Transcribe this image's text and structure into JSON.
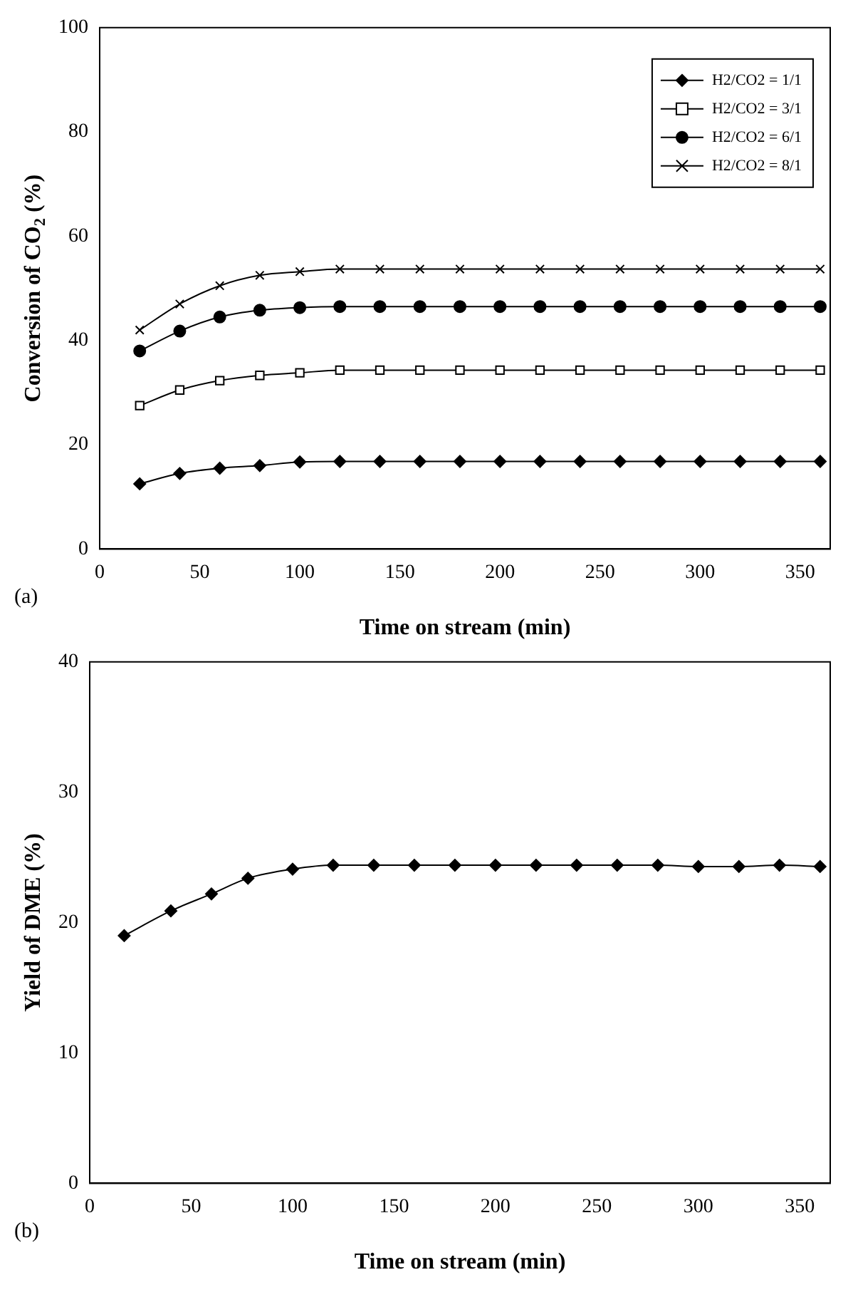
{
  "chart_data": [
    {
      "type": "line",
      "xlabel": "Time on stream (min)",
      "ylabel": "Conversion of CO$_{2}$ (%)",
      "annotations": [
        "(a)"
      ],
      "x": [
        20,
        40,
        60,
        80,
        100,
        120,
        140,
        160,
        180,
        200,
        220,
        240,
        260,
        280,
        300,
        320,
        340,
        360
      ],
      "xlim": [
        0,
        365
      ],
      "xticks": [
        0,
        50,
        100,
        150,
        200,
        250,
        300,
        350
      ],
      "ylim": [
        0,
        100
      ],
      "yticks": [
        0,
        20,
        40,
        60,
        80,
        100
      ],
      "grid": false,
      "legend": "top right",
      "series": [
        {
          "name": "H2/CO2 = 1/1",
          "color": "#000000",
          "marker": "diamond",
          "values": [
            12.5,
            14.5,
            15.5,
            16,
            16.7,
            16.8,
            16.8,
            16.8,
            16.8,
            16.8,
            16.8,
            16.8,
            16.8,
            16.8,
            16.8,
            16.8,
            16.8,
            16.8
          ]
        },
        {
          "name": "H2/CO2 = 3/1",
          "color": "#000000",
          "marker": "square",
          "values": [
            27.5,
            30.5,
            32.3,
            33.3,
            33.8,
            34.3,
            34.3,
            34.3,
            34.3,
            34.3,
            34.3,
            34.3,
            34.3,
            34.3,
            34.3,
            34.3,
            34.3,
            34.3
          ]
        },
        {
          "name": "H2/CO2 = 6/1",
          "color": "#000000",
          "marker": "circle",
          "values": [
            38,
            41.8,
            44.5,
            45.8,
            46.3,
            46.5,
            46.5,
            46.5,
            46.5,
            46.5,
            46.5,
            46.5,
            46.5,
            46.5,
            46.5,
            46.5,
            46.5,
            46.5
          ]
        },
        {
          "name": "H2/CO2 = 8/1",
          "color": "#000000",
          "marker": "cross",
          "values": [
            42,
            47,
            50.5,
            52.5,
            53.2,
            53.7,
            53.7,
            53.7,
            53.7,
            53.7,
            53.7,
            53.7,
            53.7,
            53.7,
            53.7,
            53.7,
            53.7,
            53.7
          ]
        }
      ]
    },
    {
      "type": "line",
      "xlabel": "Time on stream (min)",
      "ylabel": "Yield of DME (%)",
      "annotations": [
        "(b)"
      ],
      "x": [
        17,
        40,
        60,
        78,
        100,
        120,
        140,
        160,
        180,
        200,
        220,
        240,
        260,
        280,
        300,
        320,
        340,
        360
      ],
      "xlim": [
        0,
        365
      ],
      "xticks": [
        0,
        50,
        100,
        150,
        200,
        250,
        300,
        350
      ],
      "ylim": [
        0,
        40
      ],
      "yticks": [
        0,
        10,
        20,
        30,
        40
      ],
      "grid": false,
      "legend": false,
      "series": [
        {
          "color": "#000000",
          "marker": "diamond",
          "values": [
            19,
            20.9,
            22.2,
            23.4,
            24.1,
            24.4,
            24.4,
            24.4,
            24.4,
            24.4,
            24.4,
            24.4,
            24.4,
            24.4,
            24.3,
            24.3,
            24.4,
            24.3
          ]
        }
      ]
    }
  ]
}
